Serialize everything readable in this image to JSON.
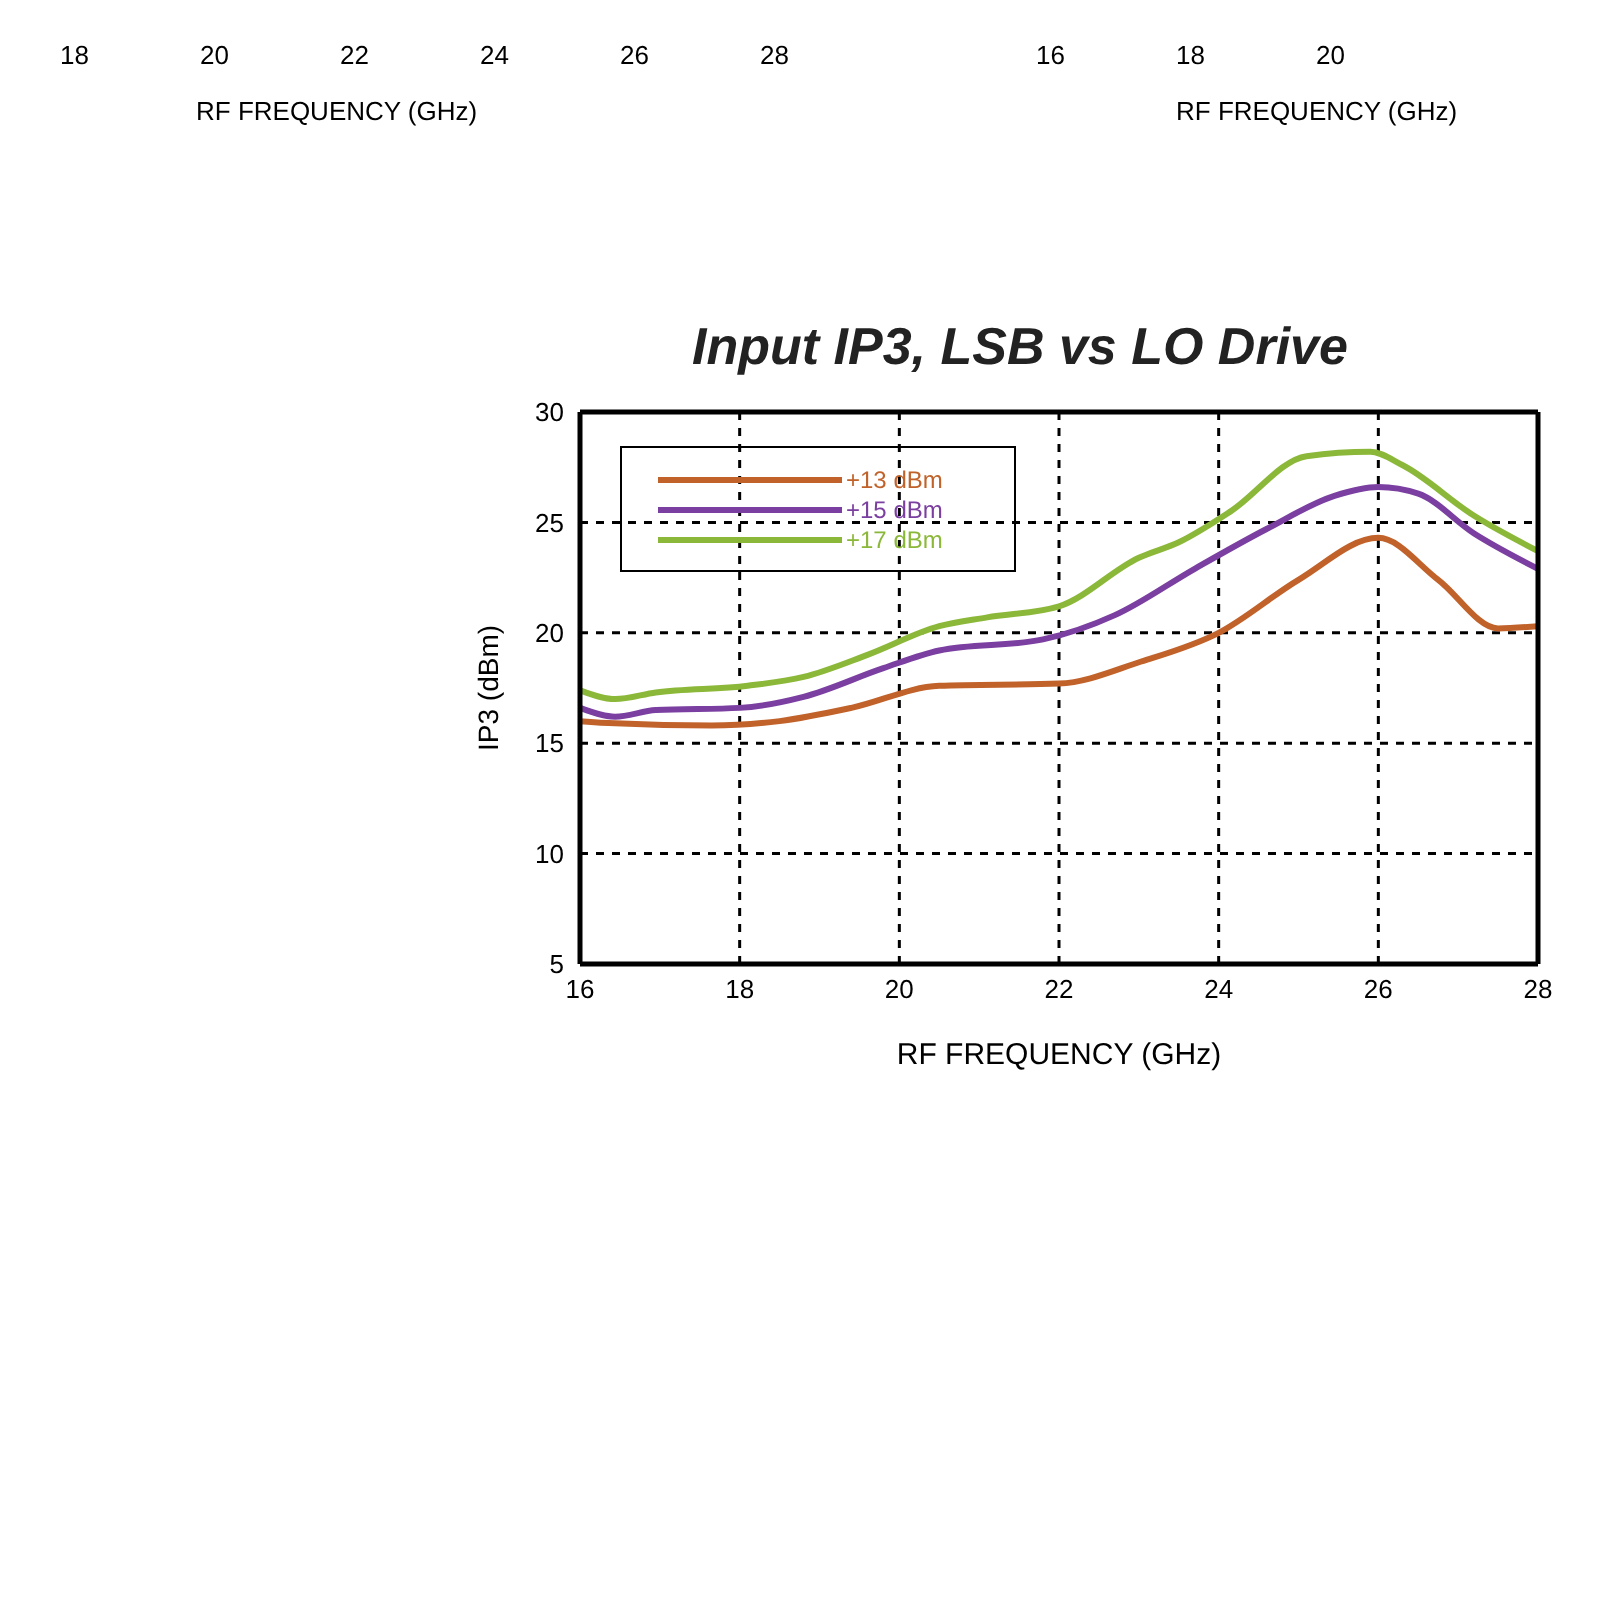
{
  "chart_data": {
    "type": "line",
    "title": "Input IP3, LSB vs LO Drive",
    "xlabel": "RF FREQUENCY (GHz)",
    "ylabel": "IP3 (dBm)",
    "xlim": [
      16,
      28
    ],
    "xticks": [
      16,
      18,
      20,
      22,
      24,
      26,
      28
    ],
    "ylim": [
      5,
      30
    ],
    "yticks": [
      5,
      10,
      15,
      20,
      25,
      30
    ],
    "grid": true,
    "legend": "top left",
    "line_style": "solid",
    "marker": "none",
    "annotations": [
      "18",
      "20",
      "22",
      "24",
      "26",
      "28",
      "RF FREQUENCY (GHz)",
      "16",
      "18",
      "20",
      "RF FREQUENCY (GHz)"
    ],
    "series": [
      {
        "name": "+13 dBm",
        "color": "#c0622a",
        "x": [
          16,
          16.44,
          17.65,
          18.5,
          19.4,
          20.5,
          22,
          23.03,
          24,
          25,
          26,
          26.75,
          27.5,
          28
        ],
        "values": [
          16,
          15.9,
          15.8,
          16,
          16.6,
          17.6,
          17.7,
          18.7,
          20,
          22.4,
          24.3,
          22.4,
          20.2,
          20.3
        ]
      },
      {
        "name": "+15 dBm",
        "color": "#7a3fa0",
        "x": [
          16,
          16.44,
          16.95,
          18,
          18.8,
          19.8,
          20.5,
          21.8,
          22.7,
          23.7,
          24.6,
          25.45,
          26,
          26.5,
          27.2,
          28
        ],
        "values": [
          16.6,
          16.2,
          16.5,
          16.6,
          17.1,
          18.4,
          19.2,
          19.7,
          20.8,
          22.9,
          24.7,
          26.2,
          26.6,
          26.3,
          24.5,
          22.9
        ]
      },
      {
        "name": "+17 dBm",
        "color": "#8cb83a",
        "x": [
          16,
          16.44,
          16.95,
          18.1,
          18.8,
          19.6,
          20.5,
          21.1,
          22,
          23,
          23.5,
          24.15,
          25.1,
          25.9,
          26.3,
          27.2,
          28
        ],
        "values": [
          17.4,
          17,
          17.3,
          17.6,
          18,
          19,
          20.3,
          20.7,
          21.2,
          23.4,
          24.1,
          25.5,
          28,
          28.2,
          27.6,
          25.3,
          23.7
        ]
      }
    ]
  }
}
